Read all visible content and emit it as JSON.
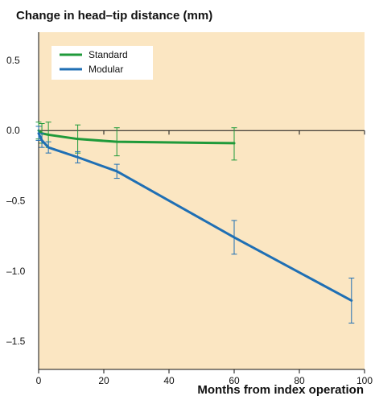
{
  "chart_data": {
    "type": "line",
    "title": "Change in head–tip distance (mm)",
    "xlabel": "Months from index operation",
    "ylabel": "",
    "xlim": [
      0,
      100
    ],
    "ylim": [
      -1.7,
      0.7
    ],
    "xticks": [
      0,
      20,
      40,
      60,
      80,
      100
    ],
    "xtick_labels": [
      "0",
      "20",
      "40",
      "60",
      "80",
      "100"
    ],
    "yticks": [
      0.5,
      0.0,
      -0.5,
      -1.0,
      -1.5
    ],
    "ytick_labels": [
      "0.5",
      "0.0",
      "–0.5",
      "–1.0",
      "–1.5"
    ],
    "grid": false,
    "background": "#fbe6c2",
    "legend_position": "top-left",
    "series": [
      {
        "name": "Standard",
        "color": "#1f9a3a",
        "points": [
          {
            "x": 0,
            "y": 0.0,
            "lo": -0.06,
            "hi": 0.06
          },
          {
            "x": 1,
            "y": -0.02,
            "lo": -0.09,
            "hi": 0.05
          },
          {
            "x": 3,
            "y": -0.03,
            "lo": -0.12,
            "hi": 0.06
          },
          {
            "x": 12,
            "y": -0.06,
            "lo": -0.16,
            "hi": 0.04
          },
          {
            "x": 24,
            "y": -0.08,
            "lo": -0.18,
            "hi": 0.02
          },
          {
            "x": 60,
            "y": -0.09,
            "lo": -0.21,
            "hi": 0.02
          }
        ]
      },
      {
        "name": "Modular",
        "color": "#1f6fb4",
        "points": [
          {
            "x": 0,
            "y": -0.02,
            "lo": -0.07,
            "hi": 0.03
          },
          {
            "x": 1,
            "y": -0.07,
            "lo": -0.12,
            "hi": -0.02
          },
          {
            "x": 3,
            "y": -0.12,
            "lo": -0.16,
            "hi": -0.08
          },
          {
            "x": 12,
            "y": -0.19,
            "lo": -0.23,
            "hi": -0.15
          },
          {
            "x": 24,
            "y": -0.29,
            "lo": -0.34,
            "hi": -0.24
          },
          {
            "x": 60,
            "y": -0.76,
            "lo": -0.88,
            "hi": -0.64
          },
          {
            "x": 96,
            "y": -1.21,
            "lo": -1.37,
            "hi": -1.05
          }
        ]
      }
    ]
  }
}
